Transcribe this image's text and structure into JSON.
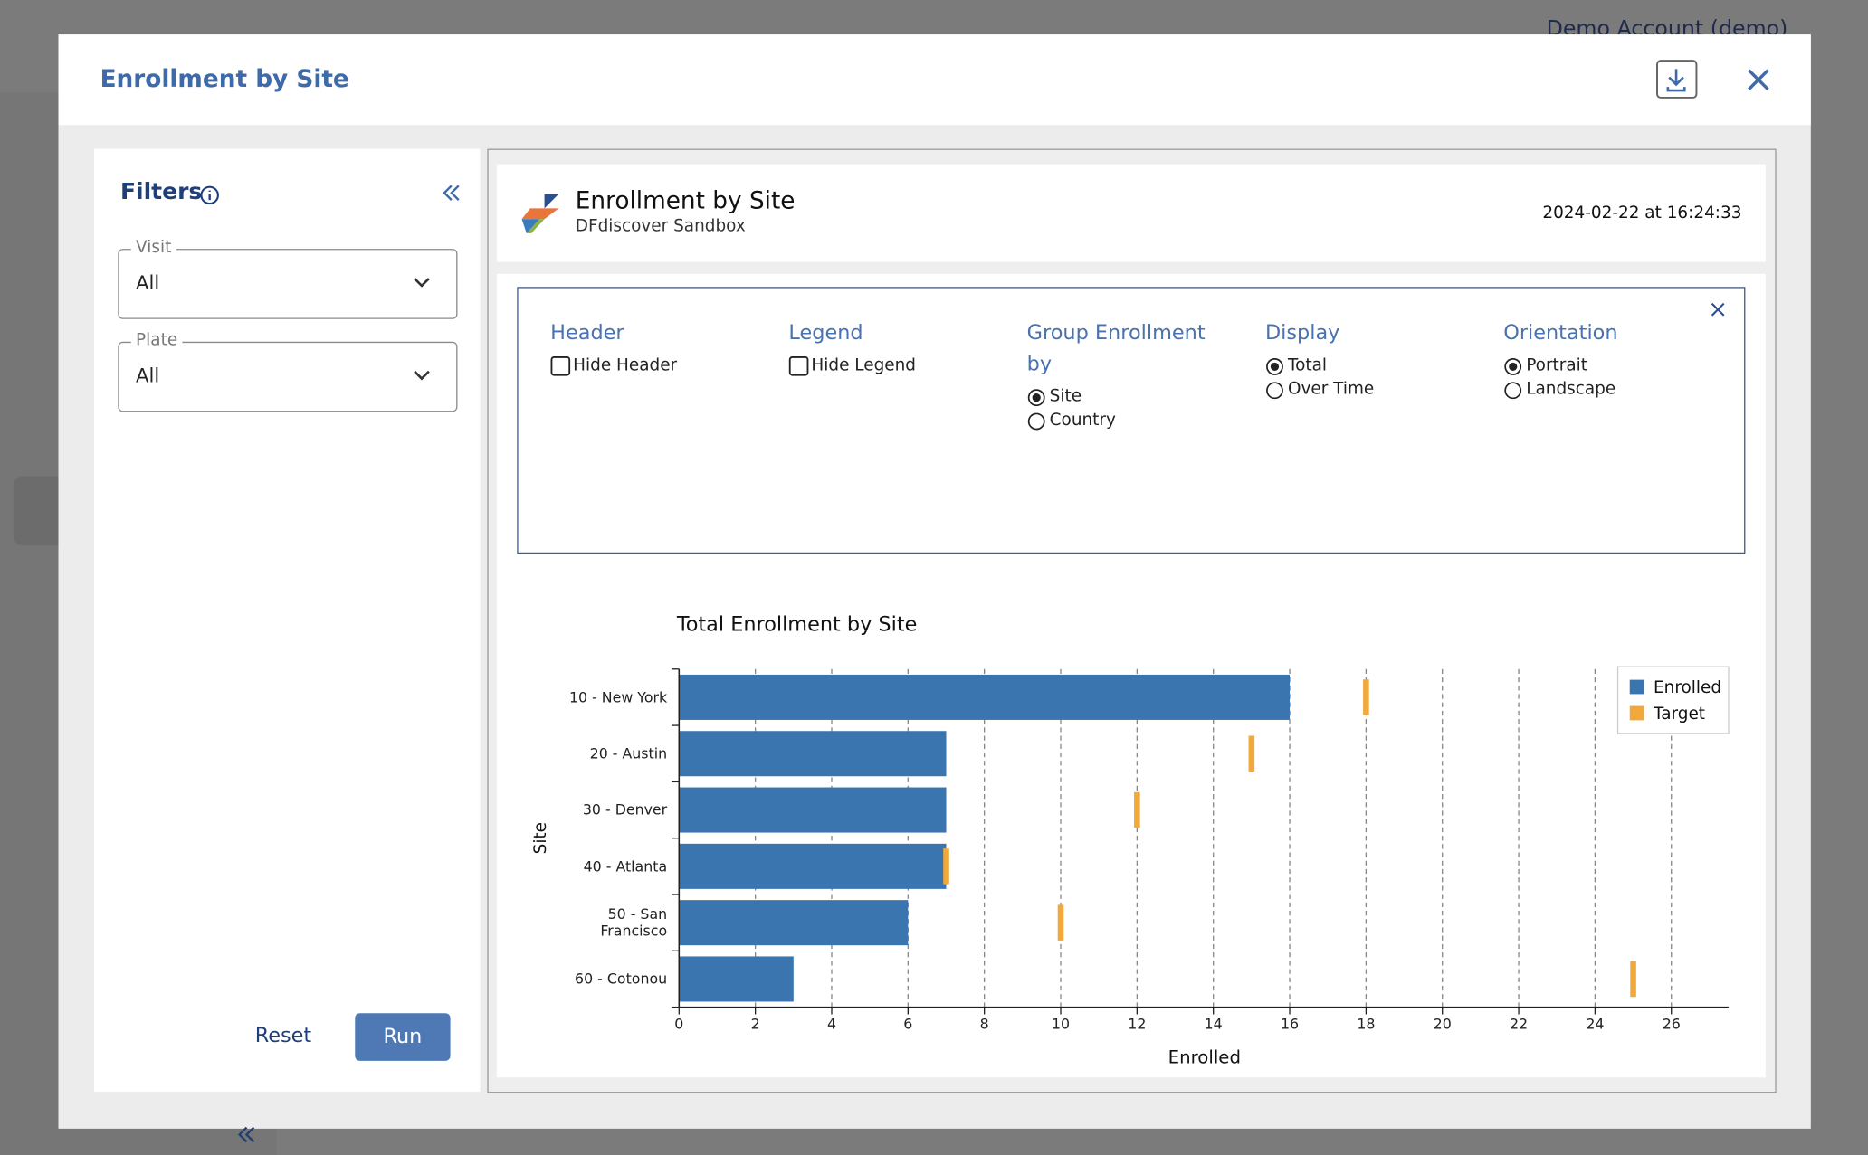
{
  "background": {
    "account": "Demo Account (demo)"
  },
  "dialog": {
    "title": "Enrollment by Site"
  },
  "filters": {
    "title": "Filters",
    "visit": {
      "label": "Visit",
      "value": "All"
    },
    "plate": {
      "label": "Plate",
      "value": "All"
    },
    "reset": "Reset",
    "run": "Run"
  },
  "report": {
    "title": "Enrollment by Site",
    "subtitle": "DFdiscover Sandbox",
    "timestamp": "2024-02-22 at 16:24:33"
  },
  "options": {
    "groups": [
      {
        "title": "Header",
        "control": "checkbox",
        "options": [
          {
            "label": "Hide Header",
            "checked": false
          }
        ]
      },
      {
        "title": "Legend",
        "control": "checkbox",
        "options": [
          {
            "label": "Hide Legend",
            "checked": false
          }
        ]
      },
      {
        "title": "Group Enrollment by",
        "control": "radio",
        "options": [
          {
            "label": "Site",
            "checked": true
          },
          {
            "label": "Country",
            "checked": false
          }
        ]
      },
      {
        "title": "Display",
        "control": "radio",
        "options": [
          {
            "label": "Total",
            "checked": true
          },
          {
            "label": "Over Time",
            "checked": false
          }
        ]
      },
      {
        "title": "Orientation",
        "control": "radio",
        "options": [
          {
            "label": "Portrait",
            "checked": true
          },
          {
            "label": "Landscape",
            "checked": false
          }
        ]
      }
    ]
  },
  "chart_data": {
    "type": "bar",
    "orientation": "horizontal",
    "title": "Total Enrollment by Site",
    "x_label": "Enrolled",
    "y_label": "Site",
    "categories": [
      "10 - New York",
      "20 - Austin",
      "30 - Denver",
      "40 - Atlanta",
      "50 - San Francisco",
      "60 - Cotonou"
    ],
    "series": [
      {
        "name": "Enrolled",
        "color": "#3a75b0",
        "values": [
          16,
          7,
          7,
          7,
          6,
          3
        ]
      },
      {
        "name": "Target",
        "color": "#f2a93b",
        "values": [
          18,
          15,
          12,
          7,
          10,
          25
        ]
      }
    ],
    "xlim": [
      0,
      27.5
    ],
    "xticks": [
      0,
      2,
      4,
      6,
      8,
      10,
      12,
      14,
      16,
      18,
      20,
      22,
      24,
      26
    ],
    "grid": true,
    "legend": "upper right"
  }
}
